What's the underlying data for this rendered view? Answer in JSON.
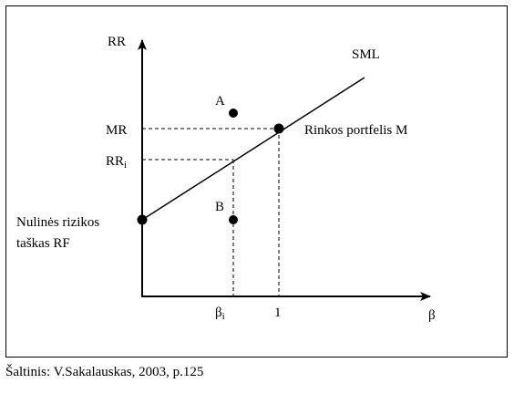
{
  "labels": {
    "y_axis": "RR",
    "x_axis": "β",
    "sml": "SML",
    "point_a": "A",
    "point_b": "B",
    "mr": "MR",
    "rr_i_base": "RR",
    "rr_i_sub": "i",
    "beta_i_base": "β",
    "beta_i_sub": "i",
    "one": "1",
    "market_portfolio": "Rinkos portfelis M",
    "risk_free_line1": "Nulinės rizikos",
    "risk_free_line2": "taškas RF"
  },
  "source": "Šaltinis: V.Sakalauskas, 2003, p.125",
  "colors": {
    "ink": "#000000",
    "background": "#ffffff"
  }
}
